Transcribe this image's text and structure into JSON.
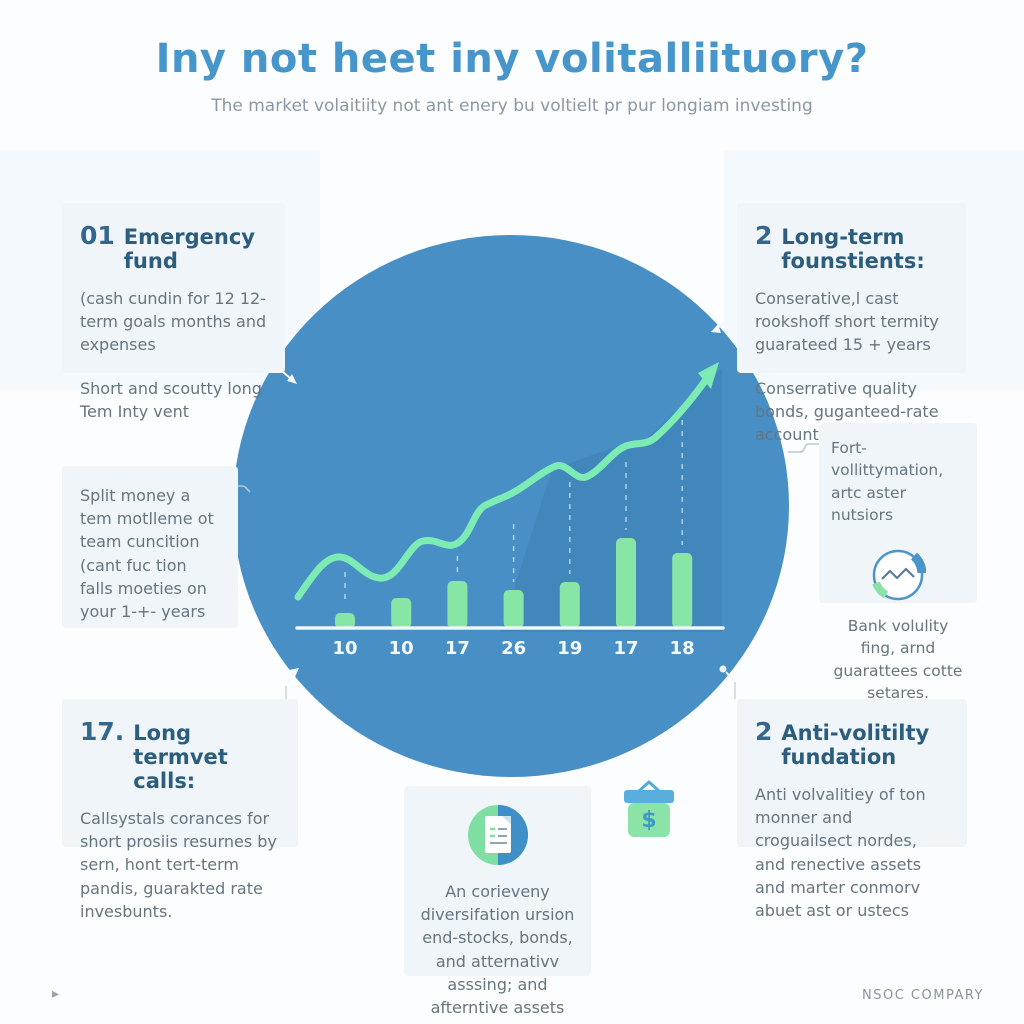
{
  "header": {
    "title": "Iny not heet iny volitalliituory?",
    "subtitle": "The market volaitiity not ant enery bu voltielt pr pur longiam investing"
  },
  "boxes": {
    "emergency_fund": {
      "number": "01",
      "heading": "Emergency fund",
      "para1": "(cash cundin for 12 12-term goals months and expenses",
      "para2": "Short and scoutty long Tem Inty vent"
    },
    "long_term_founstients": {
      "number": "2",
      "heading": "Long-term founstients:",
      "para1": "Conserative,l cast rookshoff short termity guarateed 15 + years",
      "para2": "Conserrative quality bonds, guganteed-rate accounts."
    },
    "split_money": {
      "para1": "Split money a tem motlleme ot team cuncition (cant fuc tion falls moeties on your 1-+- years"
    },
    "volatility_note": {
      "para1": "Fort-vollittymation, artc aster nutsiors",
      "para2": "Bank volulity fing, arnd guarattees cotte setares."
    },
    "long_termvet_calls": {
      "number": "17.",
      "heading": "Long termvet calls:",
      "para1": "Callsystals corances for short prosiis resurnes by sern, hont tert-term pandis, guarakted rate invesbunts."
    },
    "anti_volitilty_fundation": {
      "number": "2",
      "heading": "Anti-volitilty fundation",
      "para1": "Anti volvalitiey of ton monner and croguailsect nordes, and renective assets and marter conmorv abuet ast or ustecs"
    },
    "diversification": {
      "para1": "An corieveny diversifation ursion end-stocks, bonds, and atternativv asssing; and afterntive assets"
    }
  },
  "chart_data": {
    "type": "bar",
    "note": "bar chart with wavy rising trend line and up-right arrow inside big blue circle",
    "categories": [
      "10",
      "10",
      "17",
      "26",
      "19",
      "17",
      "18"
    ],
    "values": [
      15,
      30,
      47,
      38,
      46,
      90,
      75
    ],
    "title": "",
    "xlabel": "",
    "ylabel": "",
    "ylim": [
      0,
      100
    ],
    "grid": "dashed vertical drop-lines above bars",
    "legend": "none",
    "bar_color": "#87e6a6",
    "line_color": "#7debb4",
    "axis_color": "#eef6f8",
    "label_color": "#f2f9fb",
    "circle_color": "#478fc5"
  },
  "icons": {
    "volatility_chart_icon": "circle with zigzag line, blue and green arc segments",
    "document_icon": "green/blue circle with white document sheet and list lines",
    "money_bag_icon": "green box with blue lid, handle and $ sign",
    "dollar_sign": "$",
    "cursor_glyph": "▸"
  },
  "footer": {
    "company": "NSOC COMPARY"
  },
  "colors": {
    "title_blue": "#4796cb",
    "heading_navy": "#2c5d7d",
    "body_gray": "#66757f",
    "box_bg": "#eff5f9",
    "circle_blue": "#478fc5",
    "bar_green": "#87e6a6",
    "line_green": "#7debb4"
  }
}
